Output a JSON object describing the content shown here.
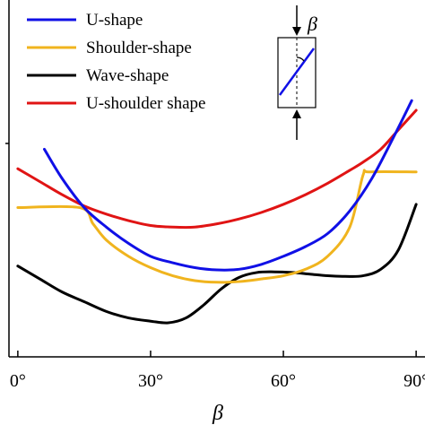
{
  "chart_data": {
    "type": "line",
    "xlabel": "β",
    "ylabel": "",
    "xlim": [
      -2,
      92
    ],
    "ylim": [
      0,
      1.1
    ],
    "x_ticks": [
      {
        "value": 0,
        "label": "0°"
      },
      {
        "value": 30,
        "label": "30°"
      },
      {
        "value": 60,
        "label": "60°"
      },
      {
        "value": 90,
        "label": "90°"
      }
    ],
    "grid": false,
    "legend_position": "top-left",
    "inset": {
      "label": "β",
      "description_icon": "specimen-with-inclined-joint-icon"
    },
    "series": [
      {
        "name": "U-shape",
        "color": "#1010e6",
        "points": [
          [
            6,
            0.64
          ],
          [
            10,
            0.55
          ],
          [
            15,
            0.46
          ],
          [
            20,
            0.4
          ],
          [
            25,
            0.35
          ],
          [
            30,
            0.31
          ],
          [
            35,
            0.29
          ],
          [
            40,
            0.275
          ],
          [
            45,
            0.268
          ],
          [
            50,
            0.27
          ],
          [
            55,
            0.285
          ],
          [
            60,
            0.31
          ],
          [
            65,
            0.34
          ],
          [
            70,
            0.38
          ],
          [
            75,
            0.45
          ],
          [
            80,
            0.55
          ],
          [
            85,
            0.68
          ],
          [
            89,
            0.79
          ]
        ]
      },
      {
        "name": "Shoulder-shape",
        "color": "#f0b41e",
        "points": [
          [
            0,
            0.46
          ],
          [
            14,
            0.46
          ],
          [
            17,
            0.41
          ],
          [
            20,
            0.36
          ],
          [
            25,
            0.31
          ],
          [
            30,
            0.275
          ],
          [
            35,
            0.25
          ],
          [
            40,
            0.235
          ],
          [
            45,
            0.23
          ],
          [
            50,
            0.232
          ],
          [
            55,
            0.24
          ],
          [
            60,
            0.25
          ],
          [
            65,
            0.27
          ],
          [
            70,
            0.31
          ],
          [
            75,
            0.4
          ],
          [
            78,
            0.56
          ],
          [
            79.5,
            0.57
          ],
          [
            90,
            0.57
          ]
        ]
      },
      {
        "name": "Wave-shape",
        "color": "#000000",
        "points": [
          [
            0,
            0.28
          ],
          [
            5,
            0.24
          ],
          [
            10,
            0.2
          ],
          [
            15,
            0.17
          ],
          [
            20,
            0.14
          ],
          [
            25,
            0.12
          ],
          [
            30,
            0.11
          ],
          [
            34,
            0.105
          ],
          [
            38,
            0.12
          ],
          [
            42,
            0.16
          ],
          [
            46,
            0.21
          ],
          [
            50,
            0.245
          ],
          [
            54,
            0.26
          ],
          [
            58,
            0.262
          ],
          [
            62,
            0.26
          ],
          [
            66,
            0.255
          ],
          [
            70,
            0.25
          ],
          [
            74,
            0.248
          ],
          [
            78,
            0.25
          ],
          [
            82,
            0.27
          ],
          [
            86,
            0.33
          ],
          [
            90,
            0.47
          ]
        ]
      },
      {
        "name": "U-shoulder shape",
        "color": "#e01414",
        "points": [
          [
            0,
            0.58
          ],
          [
            5,
            0.54
          ],
          [
            10,
            0.5
          ],
          [
            15,
            0.465
          ],
          [
            20,
            0.44
          ],
          [
            25,
            0.42
          ],
          [
            30,
            0.405
          ],
          [
            35,
            0.4
          ],
          [
            40,
            0.4
          ],
          [
            45,
            0.41
          ],
          [
            50,
            0.425
          ],
          [
            55,
            0.445
          ],
          [
            60,
            0.47
          ],
          [
            65,
            0.5
          ],
          [
            70,
            0.535
          ],
          [
            75,
            0.575
          ],
          [
            78,
            0.6
          ],
          [
            82,
            0.64
          ],
          [
            86,
            0.7
          ],
          [
            90,
            0.76
          ]
        ]
      }
    ]
  }
}
